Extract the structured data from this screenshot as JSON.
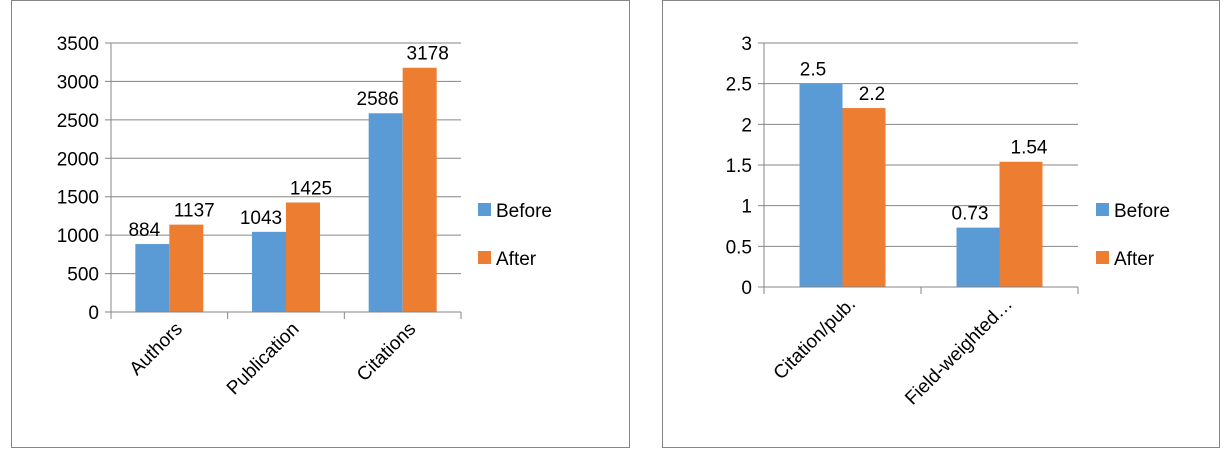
{
  "colors": {
    "before": "#5B9BD5",
    "after": "#ED7D31",
    "grid": "#868686"
  },
  "chart_data": [
    {
      "type": "bar",
      "categories": [
        "Authors",
        "Publication",
        "Citations"
      ],
      "series": [
        {
          "name": "Before",
          "values": [
            884,
            1043,
            2586
          ]
        },
        {
          "name": "After",
          "values": [
            1137,
            1425,
            3178
          ]
        }
      ],
      "ylim": [
        0,
        3500
      ],
      "yticks": [
        "0",
        "500",
        "1000",
        "1500",
        "2000",
        "2500",
        "3000",
        "3500"
      ],
      "data_labels": [
        [
          "884",
          "1043",
          "2586"
        ],
        [
          "1137",
          "1425",
          "3178"
        ]
      ],
      "legend": [
        "Before",
        "After"
      ],
      "legend_position": "right",
      "grid": true
    },
    {
      "type": "bar",
      "categories": [
        "Citation/pub.",
        "Field-weighted…"
      ],
      "series": [
        {
          "name": "Before",
          "values": [
            2.5,
            0.73
          ]
        },
        {
          "name": "After",
          "values": [
            2.2,
            1.54
          ]
        }
      ],
      "ylim": [
        0,
        3
      ],
      "yticks": [
        "0",
        "0.5",
        "1",
        "1.5",
        "2",
        "2.5",
        "3"
      ],
      "data_labels": [
        [
          "2.5",
          "0.73"
        ],
        [
          "2.2",
          "1.54"
        ]
      ],
      "legend": [
        "Before",
        "After"
      ],
      "legend_position": "right",
      "grid": true
    }
  ]
}
